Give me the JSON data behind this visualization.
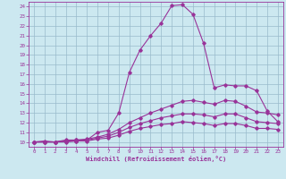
{
  "xlabel": "Windchill (Refroidissement éolien,°C)",
  "bg_color": "#cce8f0",
  "line_color": "#993399",
  "grid_color": "#99bbcc",
  "xlim": [
    -0.5,
    23.5
  ],
  "ylim": [
    9.5,
    24.5
  ],
  "xticks": [
    0,
    1,
    2,
    3,
    4,
    5,
    6,
    7,
    8,
    9,
    10,
    11,
    12,
    13,
    14,
    15,
    16,
    17,
    18,
    19,
    20,
    21,
    22,
    23
  ],
  "yticks": [
    10,
    11,
    12,
    13,
    14,
    15,
    16,
    17,
    18,
    19,
    20,
    21,
    22,
    23,
    24
  ],
  "curves": [
    [
      10.0,
      10.1,
      10.0,
      10.2,
      10.2,
      10.2,
      11.0,
      11.2,
      13.0,
      17.2,
      19.5,
      21.0,
      22.3,
      24.1,
      24.2,
      23.2,
      20.2,
      15.6,
      15.9,
      15.8,
      15.8,
      15.3,
      13.2,
      12.1
    ],
    [
      10.0,
      10.0,
      10.0,
      10.1,
      10.2,
      10.3,
      10.5,
      10.8,
      11.3,
      12.0,
      12.5,
      13.0,
      13.4,
      13.8,
      14.2,
      14.3,
      14.1,
      13.9,
      14.3,
      14.2,
      13.7,
      13.1,
      13.0,
      12.8
    ],
    [
      10.0,
      10.0,
      10.0,
      10.1,
      10.1,
      10.2,
      10.4,
      10.6,
      11.0,
      11.5,
      11.9,
      12.2,
      12.5,
      12.7,
      12.9,
      12.9,
      12.8,
      12.6,
      12.9,
      12.9,
      12.5,
      12.1,
      12.0,
      11.9
    ],
    [
      10.0,
      10.0,
      10.0,
      10.0,
      10.1,
      10.1,
      10.3,
      10.4,
      10.7,
      11.1,
      11.4,
      11.6,
      11.8,
      11.9,
      12.1,
      12.0,
      11.9,
      11.7,
      11.9,
      11.9,
      11.7,
      11.4,
      11.4,
      11.3
    ]
  ]
}
